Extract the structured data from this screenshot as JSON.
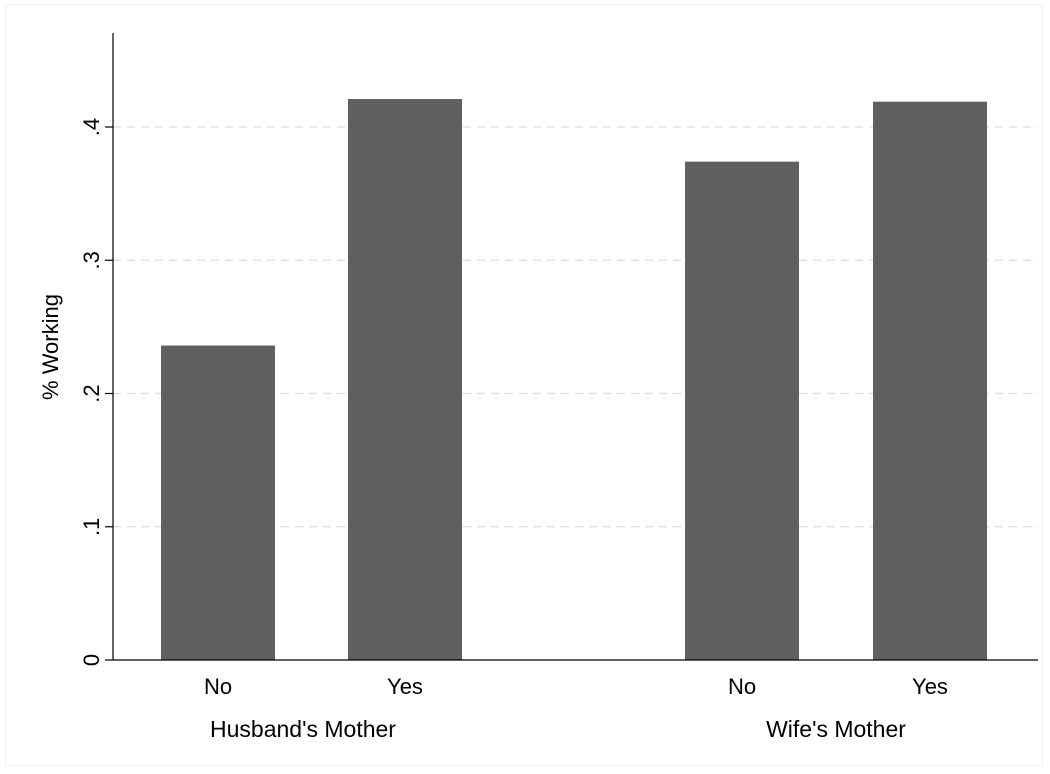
{
  "chart_data": {
    "type": "bar",
    "title": "",
    "ylabel": "% Working",
    "ylim": [
      0,
      0.4597
    ],
    "yticks": [
      0,
      0.1,
      0.2,
      0.3,
      0.4
    ],
    "ytick_labels": [
      "0",
      ".1",
      ".2",
      ".3",
      ".4"
    ],
    "grid": true,
    "bar_color": "#5f5f5f",
    "groups": [
      {
        "label": "Husband's Mother",
        "categories": [
          "No",
          "Yes"
        ],
        "values": [
          0.236,
          0.421
        ]
      },
      {
        "label": "Wife's Mother",
        "categories": [
          "No",
          "Yes"
        ],
        "values": [
          0.374,
          0.419
        ]
      }
    ]
  }
}
